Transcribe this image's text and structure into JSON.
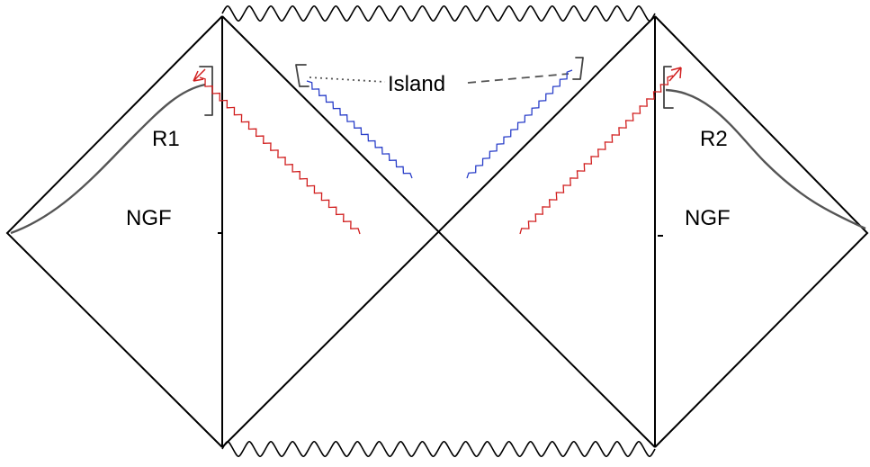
{
  "labels": {
    "island": "Island",
    "r1": "R1",
    "r2": "R2",
    "ngf_left": "NGF",
    "ngf_right": "NGF"
  },
  "colors": {
    "outline": "#000000",
    "radiation_red": "#d11f1f",
    "island_blue": "#2a3fc9",
    "brace_gray": "#444444",
    "curve_gray": "#555555"
  }
}
